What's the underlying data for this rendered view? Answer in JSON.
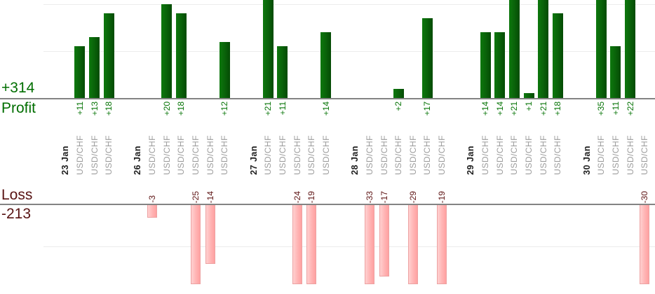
{
  "axis": {
    "profit_total": "+314",
    "profit_label": "Profit",
    "loss_label": "Loss",
    "loss_total": "-213"
  },
  "chart_data": {
    "type": "bar",
    "profit_total": 314,
    "loss_total": -213,
    "profit_gridlines": [
      10,
      20
    ],
    "loss_gridlines": [
      -10
    ],
    "groups": [
      {
        "date": "23 Jan",
        "trades": [
          {
            "pair": "USD/CHF",
            "value": 11,
            "label": "+11"
          },
          {
            "pair": "USD/CHF",
            "value": 13,
            "label": "+13"
          },
          {
            "pair": "USD/CHF",
            "value": 18,
            "label": "+18"
          }
        ]
      },
      {
        "date": "26 Jan",
        "trades": [
          {
            "pair": "USD/CHF",
            "value": -3,
            "label": "-3"
          },
          {
            "pair": "USD/CHF",
            "value": 20,
            "label": "+20"
          },
          {
            "pair": "USD/CHF",
            "value": 18,
            "label": "+18"
          },
          {
            "pair": "USD/CHF",
            "value": -25,
            "label": "-25"
          },
          {
            "pair": "USD/CHF",
            "value": -14,
            "label": "-14"
          },
          {
            "pair": "USD/CHF",
            "value": 12,
            "label": "+12"
          }
        ]
      },
      {
        "date": "27 Jan",
        "trades": [
          {
            "pair": "USD/CHF",
            "value": 21,
            "label": "+21"
          },
          {
            "pair": "USD/CHF",
            "value": 11,
            "label": "+11"
          },
          {
            "pair": "USD/CHF",
            "value": -24,
            "label": "-24"
          },
          {
            "pair": "USD/CHF",
            "value": -19,
            "label": "-19"
          },
          {
            "pair": "USD/CHF",
            "value": 14,
            "label": "+14"
          }
        ]
      },
      {
        "date": "28 Jan",
        "trades": [
          {
            "pair": "USD/CHF",
            "value": -33,
            "label": "-33"
          },
          {
            "pair": "USD/CHF",
            "value": -17,
            "label": "-17"
          },
          {
            "pair": "USD/CHF",
            "value": 2,
            "label": "+2"
          },
          {
            "pair": "USD/CHF",
            "value": -29,
            "label": "-29"
          },
          {
            "pair": "USD/CHF",
            "value": 17,
            "label": "+17"
          },
          {
            "pair": "USD/CHF",
            "value": -19,
            "label": "-19"
          }
        ]
      },
      {
        "date": "29 Jan",
        "trades": [
          {
            "pair": "USD/CHF",
            "value": 14,
            "label": "+14"
          },
          {
            "pair": "USD/CHF",
            "value": 14,
            "label": "+14"
          },
          {
            "pair": "USD/CHF",
            "value": 21,
            "label": "+21"
          },
          {
            "pair": "USD/CHF",
            "value": 1,
            "label": "+1"
          },
          {
            "pair": "USD/CHF",
            "value": 21,
            "label": "+21"
          },
          {
            "pair": "USD/CHF",
            "value": 18,
            "label": "+18"
          }
        ]
      },
      {
        "date": "30 Jan",
        "trades": [
          {
            "pair": "USD/CHF",
            "value": 35,
            "label": "+35"
          },
          {
            "pair": "USD/CHF",
            "value": 11,
            "label": "+11"
          },
          {
            "pair": "USD/CHF",
            "value": 22,
            "label": "+22"
          },
          {
            "pair": "USD/CHF",
            "value": -30,
            "label": "-30"
          }
        ]
      }
    ],
    "colors": {
      "profit_bar": "#0a650a",
      "loss_bar": "#ffb4b4",
      "loss_bar_border": "#eda2a2",
      "profit_text": "#077407",
      "loss_text": "#5e1414",
      "pair_text": "#9c9c9c",
      "date_text": "#1f1f1f",
      "axis_line": "#838383"
    }
  }
}
